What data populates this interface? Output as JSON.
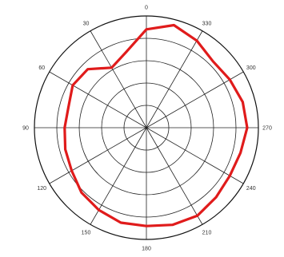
{
  "chart_data": {
    "type": "line",
    "subtype": "polar",
    "title": "",
    "angle_ticks": [
      "0",
      "30",
      "60",
      "90",
      "120",
      "150",
      "180",
      "210",
      "240",
      "270",
      "300",
      "330"
    ],
    "angle_direction": "counterclockwise",
    "angle_zero": "top",
    "ring_count": 5,
    "grid": true,
    "series": [
      {
        "color": "#e01b1b",
        "angles": [
          0,
          15,
          30,
          45,
          60,
          75,
          90,
          105,
          120,
          135,
          150,
          165,
          180,
          195,
          210,
          225,
          240,
          255,
          270,
          285,
          300,
          315,
          330,
          345
        ],
        "r": [
          0.88,
          0.7,
          0.62,
          0.74,
          0.76,
          0.72,
          0.73,
          0.75,
          0.77,
          0.82,
          0.85,
          0.88,
          0.88,
          0.9,
          0.91,
          0.88,
          0.86,
          0.87,
          0.9,
          0.89,
          0.86,
          0.84,
          0.9,
          0.95
        ]
      }
    ]
  }
}
